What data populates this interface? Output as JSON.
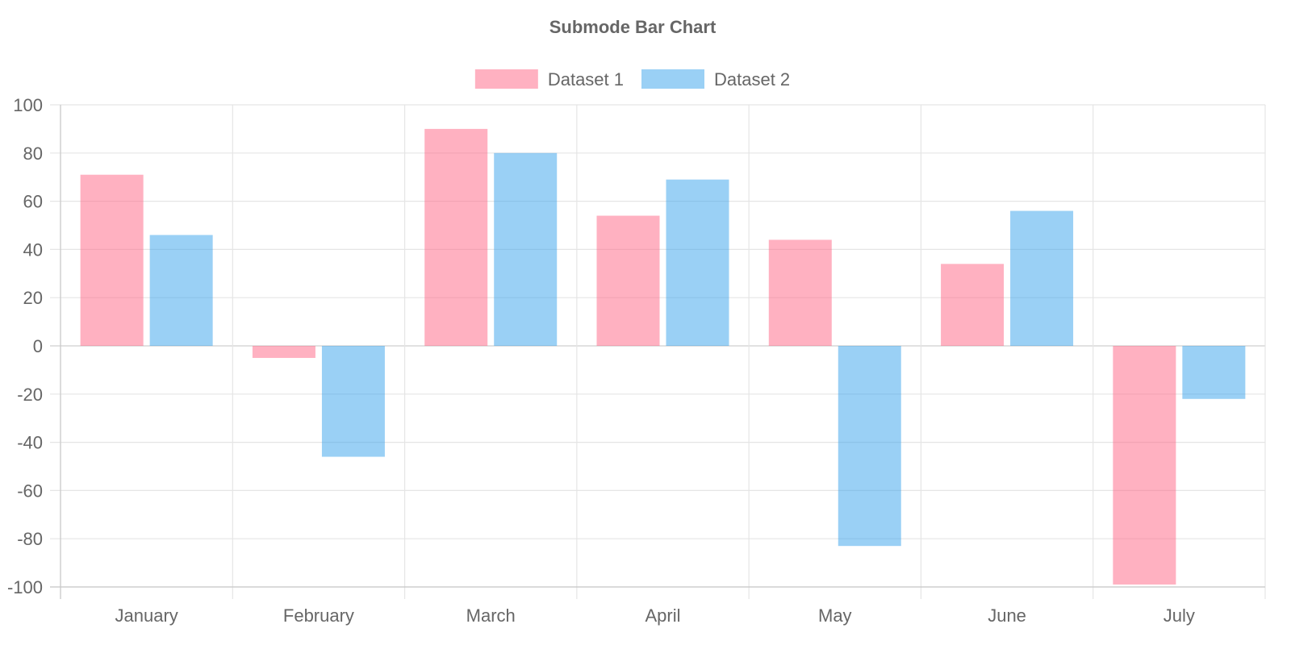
{
  "chart_data": {
    "type": "bar",
    "title": "Submode Bar Chart",
    "categories": [
      "January",
      "February",
      "March",
      "April",
      "May",
      "June",
      "July"
    ],
    "series": [
      {
        "name": "Dataset 1",
        "fill": "rgba(255,99,132,0.5)",
        "values": [
          71,
          -5,
          90,
          54,
          44,
          34,
          -99
        ]
      },
      {
        "name": "Dataset 2",
        "fill": "rgba(54,162,235,0.5)",
        "values": [
          46,
          -46,
          80,
          69,
          -83,
          56,
          -22
        ]
      }
    ],
    "ylim": [
      -100,
      100
    ],
    "yticks": [
      "100",
      "80",
      "60",
      "40",
      "20",
      "0",
      "-20",
      "-40",
      "-60",
      "-80",
      "-100"
    ],
    "legend_position": "top",
    "grid": true,
    "colors": {
      "grid": "#e5e5e5",
      "axis": "#c8c8c8",
      "text": "#666666"
    }
  }
}
